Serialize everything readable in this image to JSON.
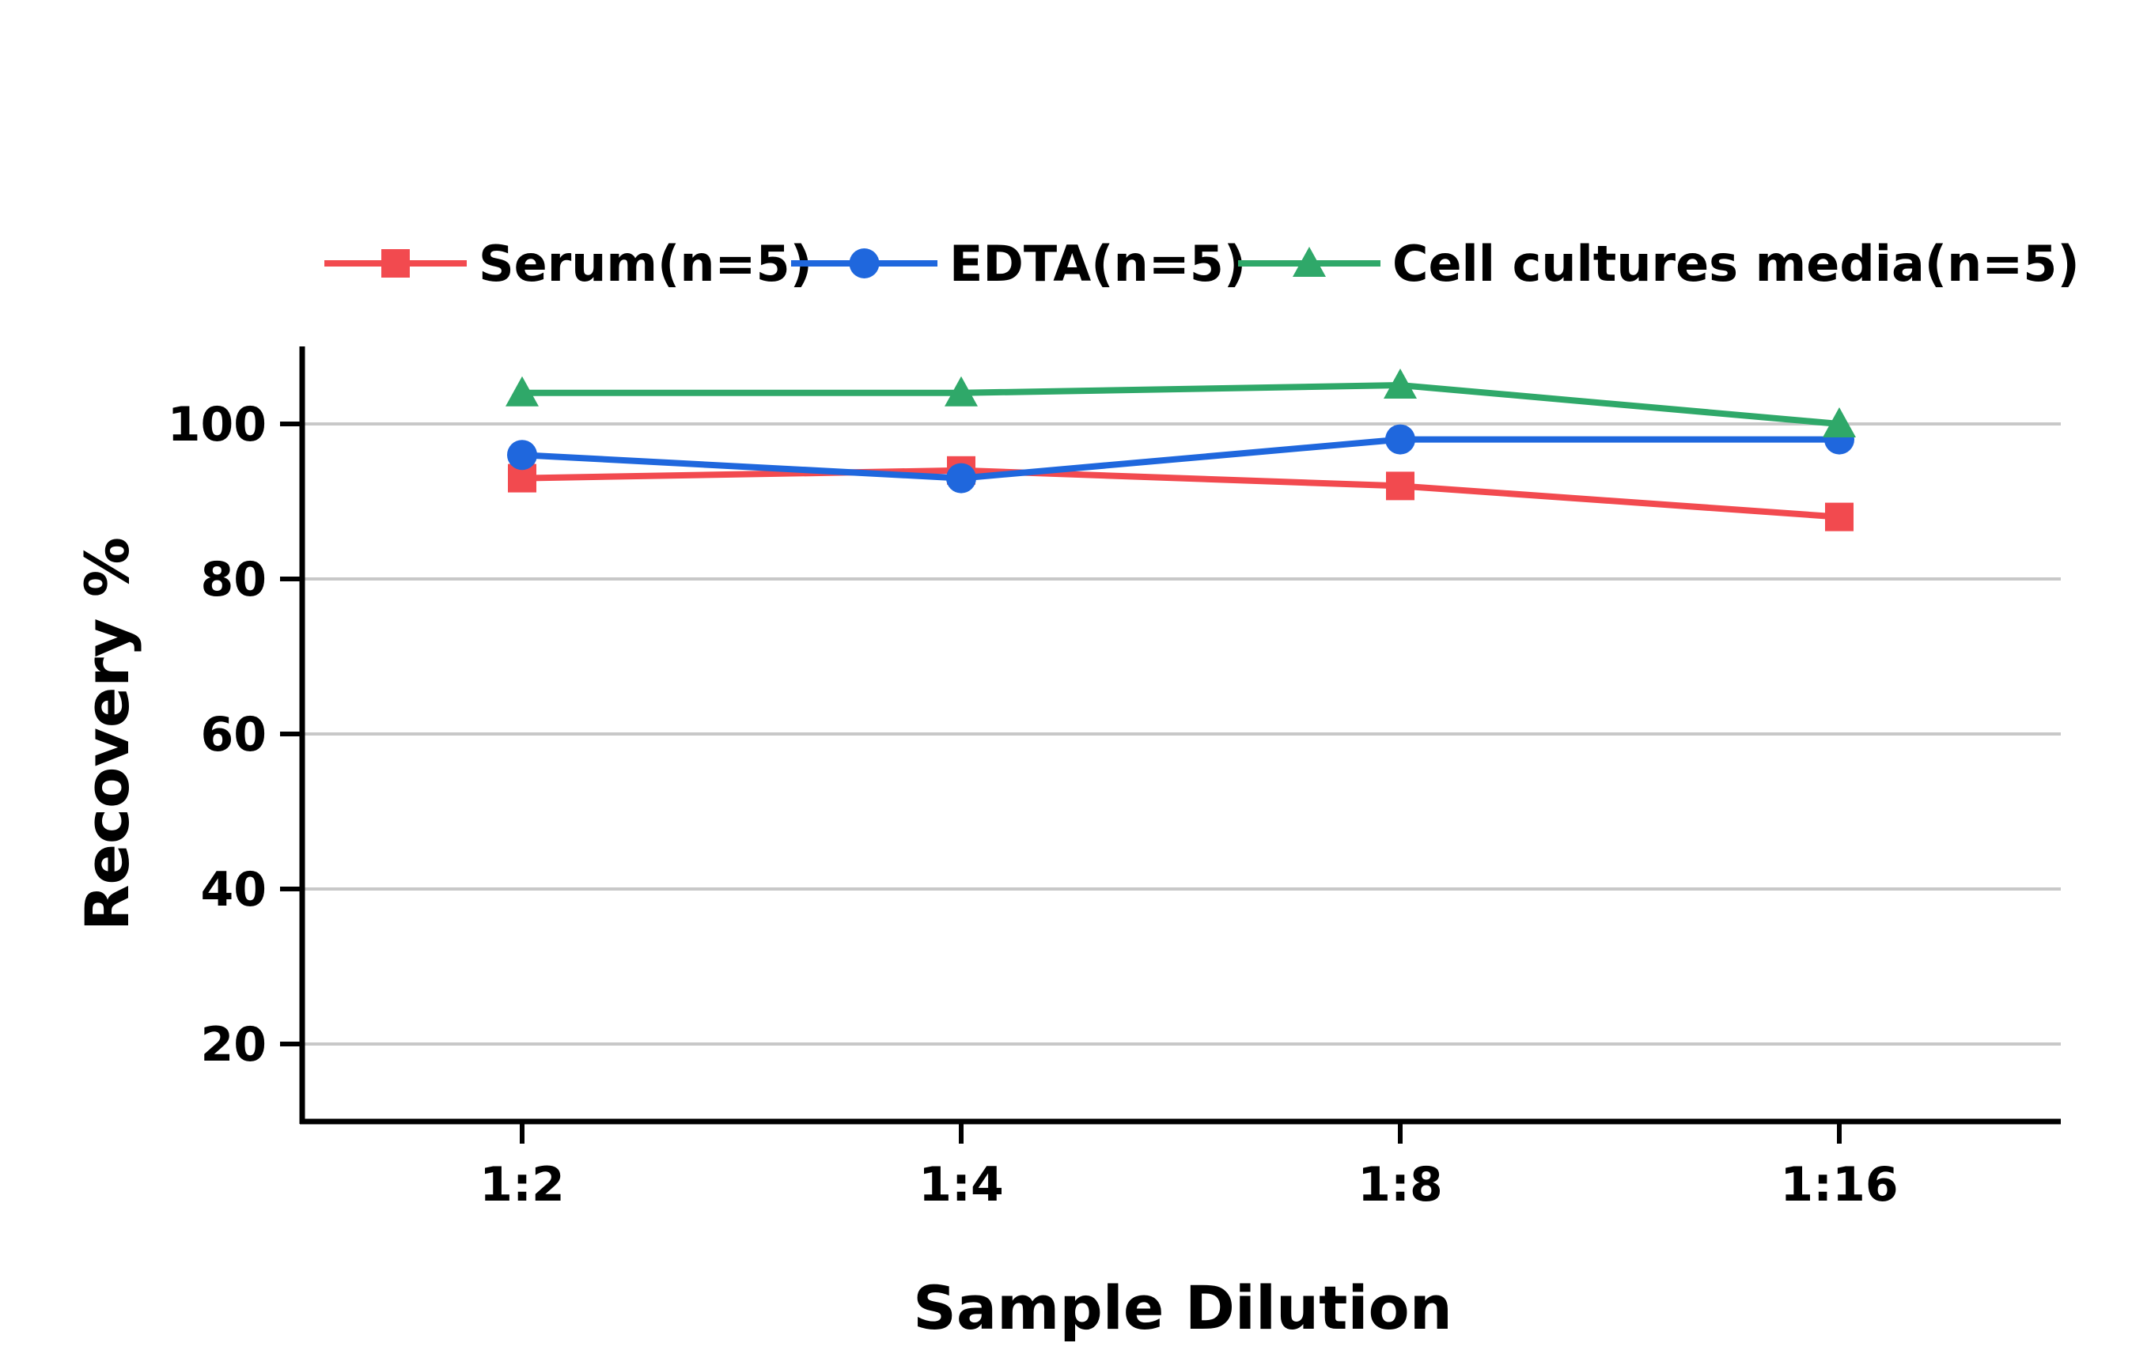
{
  "chart_data": {
    "type": "line",
    "title": "",
    "xlabel": "Sample Dilution",
    "ylabel": "Recovery %",
    "categories": [
      "1:2",
      "1:4",
      "1:8",
      "1:16"
    ],
    "ylim": [
      10,
      110
    ],
    "yticks": [
      20,
      40,
      60,
      80,
      100
    ],
    "grid": "horizontal",
    "legend_position": "top",
    "series": [
      {
        "name": "Serum(n=5)",
        "color": "#f24a4f",
        "marker": "square",
        "values": [
          93,
          94,
          92,
          88
        ]
      },
      {
        "name": "EDTA(n=5)",
        "color": "#1f67dd",
        "marker": "circle",
        "values": [
          96,
          93,
          98,
          98
        ]
      },
      {
        "name": "Cell cultures media(n=5)",
        "color": "#2fa869",
        "marker": "triangle",
        "values": [
          104,
          104,
          105,
          100
        ]
      }
    ]
  }
}
